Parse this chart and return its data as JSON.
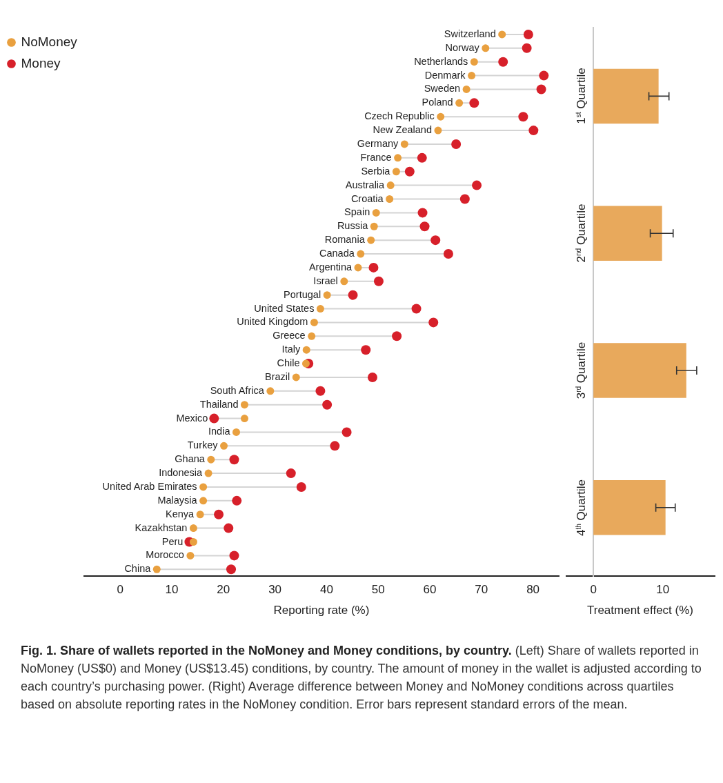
{
  "chart_data": [
    {
      "type": "scatter",
      "orientation": "horizontal",
      "marker": "circle",
      "legend": "top left",
      "xlabel": "Reporting rate (%)",
      "xlim": [
        -7,
        85
      ],
      "xticks": [
        0,
        10,
        20,
        30,
        40,
        50,
        60,
        70,
        80
      ],
      "categories": [
        "Switzerland",
        "Norway",
        "Netherlands",
        "Denmark",
        "Sweden",
        "Poland",
        "Czech Republic",
        "New Zealand",
        "Germany",
        "France",
        "Serbia",
        "Australia",
        "Croatia",
        "Spain",
        "Russia",
        "Romania",
        "Canada",
        "Argentina",
        "Israel",
        "Portugal",
        "United States",
        "United Kingdom",
        "Greece",
        "Italy",
        "Chile",
        "Brazil",
        "South Africa",
        "Thailand",
        "Mexico",
        "India",
        "Turkey",
        "Ghana",
        "Indonesia",
        "United Arab Emirates",
        "Malaysia",
        "Kenya",
        "Kazakhstan",
        "Peru",
        "Morocco",
        "China"
      ],
      "series": [
        {
          "name": "NoMoney",
          "color": "#e9a03f",
          "values": [
            74.0,
            70.8,
            68.6,
            68.1,
            67.1,
            65.7,
            62.1,
            61.6,
            55.1,
            53.8,
            53.5,
            52.4,
            52.2,
            49.6,
            49.2,
            48.6,
            46.6,
            46.1,
            43.4,
            40.1,
            38.8,
            37.6,
            37.1,
            36.1,
            36.0,
            34.1,
            29.1,
            24.1,
            24.1,
            22.5,
            20.1,
            17.6,
            17.1,
            16.1,
            16.1,
            15.5,
            14.2,
            14.2,
            13.6,
            7.1
          ]
        },
        {
          "name": "Money",
          "color": "#d7202a",
          "values": [
            79.1,
            78.8,
            74.2,
            82.1,
            81.6,
            68.6,
            78.1,
            80.1,
            65.1,
            58.5,
            56.1,
            69.1,
            66.8,
            58.6,
            59.0,
            61.1,
            63.6,
            49.1,
            50.1,
            45.1,
            57.4,
            60.7,
            53.6,
            47.6,
            36.5,
            48.9,
            38.8,
            40.1,
            18.2,
            43.9,
            41.6,
            22.1,
            33.1,
            35.1,
            22.6,
            19.1,
            21.0,
            13.4,
            22.1,
            21.5
          ]
        }
      ],
      "annotations": [
        "Fig. 1. Share of wallets reported in the NoMoney and Money conditions, by country.",
        "(Left) Share of wallets reported in NoMoney (US$0) and Money (US$13.45) conditions, by country. The amount of money in the wallet is adjusted according to each country’s purchasing power.",
        "(Right) Average difference between Money and NoMoney conditions across quartiles based on absolute reporting rates in the NoMoney condition. Error bars represent standard errors of the mean."
      ]
    },
    {
      "type": "bar",
      "orientation": "horizontal",
      "xlabel": "Treatment effect (%)",
      "xlim": [
        -4,
        17.5
      ],
      "xticks": [
        0,
        10
      ],
      "categories": [
        "1$^{st}$ Quartile",
        "2$^{nd}$ Quartile",
        "3$^{rd}$ Quartile",
        "4$^{th}$ Quartile"
      ],
      "values": [
        9.4,
        9.9,
        13.4,
        10.4
      ],
      "color": "#e8a95c",
      "errors": [
        [
          8.0,
          10.9
        ],
        [
          8.2,
          11.5
        ],
        [
          12.0,
          14.9
        ],
        [
          9.0,
          11.8
        ]
      ]
    }
  ]
}
